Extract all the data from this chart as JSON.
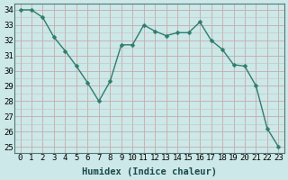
{
  "x": [
    0,
    1,
    2,
    3,
    4,
    5,
    6,
    7,
    8,
    9,
    10,
    11,
    12,
    13,
    14,
    15,
    16,
    17,
    18,
    19,
    20,
    21,
    22,
    23
  ],
  "y": [
    34,
    34,
    33.5,
    32.2,
    31.3,
    30.3,
    29.2,
    28.0,
    29.3,
    31.7,
    31.7,
    33.0,
    32.6,
    32.3,
    32.5,
    32.5,
    33.2,
    32.0,
    31.4,
    30.4,
    30.3,
    29.0,
    26.2,
    25.0
  ],
  "line_color": "#2e7d6e",
  "marker": "D",
  "marker_size": 2.5,
  "bg_color": "#cce8e8",
  "grid_major_color": "#b8d8d8",
  "grid_minor_color": "#c8e4e4",
  "xlabel": "Humidex (Indice chaleur)",
  "ytick_labels": [
    "25",
    "26",
    "27",
    "28",
    "29",
    "30",
    "31",
    "32",
    "33",
    "34"
  ],
  "ytick_values": [
    25,
    26,
    27,
    28,
    29,
    30,
    31,
    32,
    33,
    34
  ],
  "xlim": [
    -0.5,
    23.5
  ],
  "ylim": [
    24.6,
    34.4
  ],
  "xlabel_fontsize": 7.5,
  "tick_fontsize": 6.5
}
